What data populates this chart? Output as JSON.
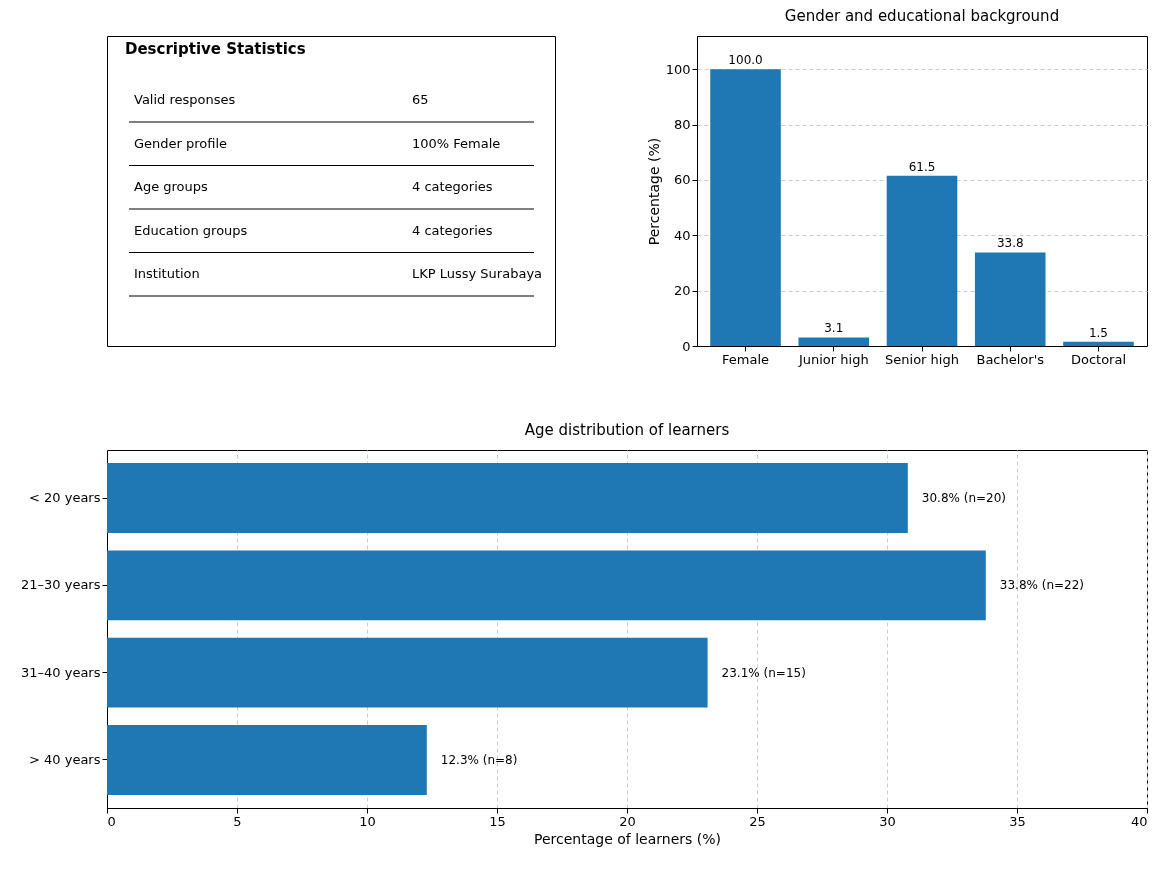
{
  "chart_data": [
    {
      "type": "other",
      "title": "Descriptive Statistics",
      "annotations": [
        "Valid responses",
        "65",
        "Gender profile",
        "100% Female",
        "Age groups",
        "4 categories",
        "Education groups",
        "4 categories",
        "Institution",
        "LKP Lussy Surabaya"
      ]
    },
    {
      "type": "bar",
      "title": "Gender and educational background",
      "ylabel": "Percentage (%)",
      "categories": [
        "Female",
        "Junior high",
        "Senior high",
        "Bachelor's",
        "Doctoral"
      ],
      "values": [
        100.0,
        3.1,
        61.5,
        33.8,
        1.5
      ],
      "color": "#1f77b4",
      "value_labels": [
        "100.0",
        "3.1",
        "61.5",
        "33.8",
        "1.5"
      ],
      "ylim": [
        0,
        112
      ],
      "yticks": [
        0,
        20,
        40,
        60,
        80,
        100
      ],
      "grid": "y"
    },
    {
      "type": "bar",
      "orientation": "horizontal",
      "title": "Age distribution of learners",
      "xlabel": "Percentage of learners (%)",
      "categories": [
        "< 20 years",
        "21–30 years",
        "31–40 years",
        "> 40 years"
      ],
      "values": [
        30.8,
        33.8,
        23.1,
        12.3
      ],
      "value_labels": [
        "30.8% (n=20)",
        "33.8% (n=22)",
        "23.1% (n=15)",
        "12.3% (n=8)"
      ],
      "color": "#1f77b4",
      "xlim": [
        0,
        40
      ],
      "xticks": [
        0,
        5,
        10,
        15,
        20,
        25,
        30,
        35,
        40
      ],
      "grid": "x"
    }
  ]
}
